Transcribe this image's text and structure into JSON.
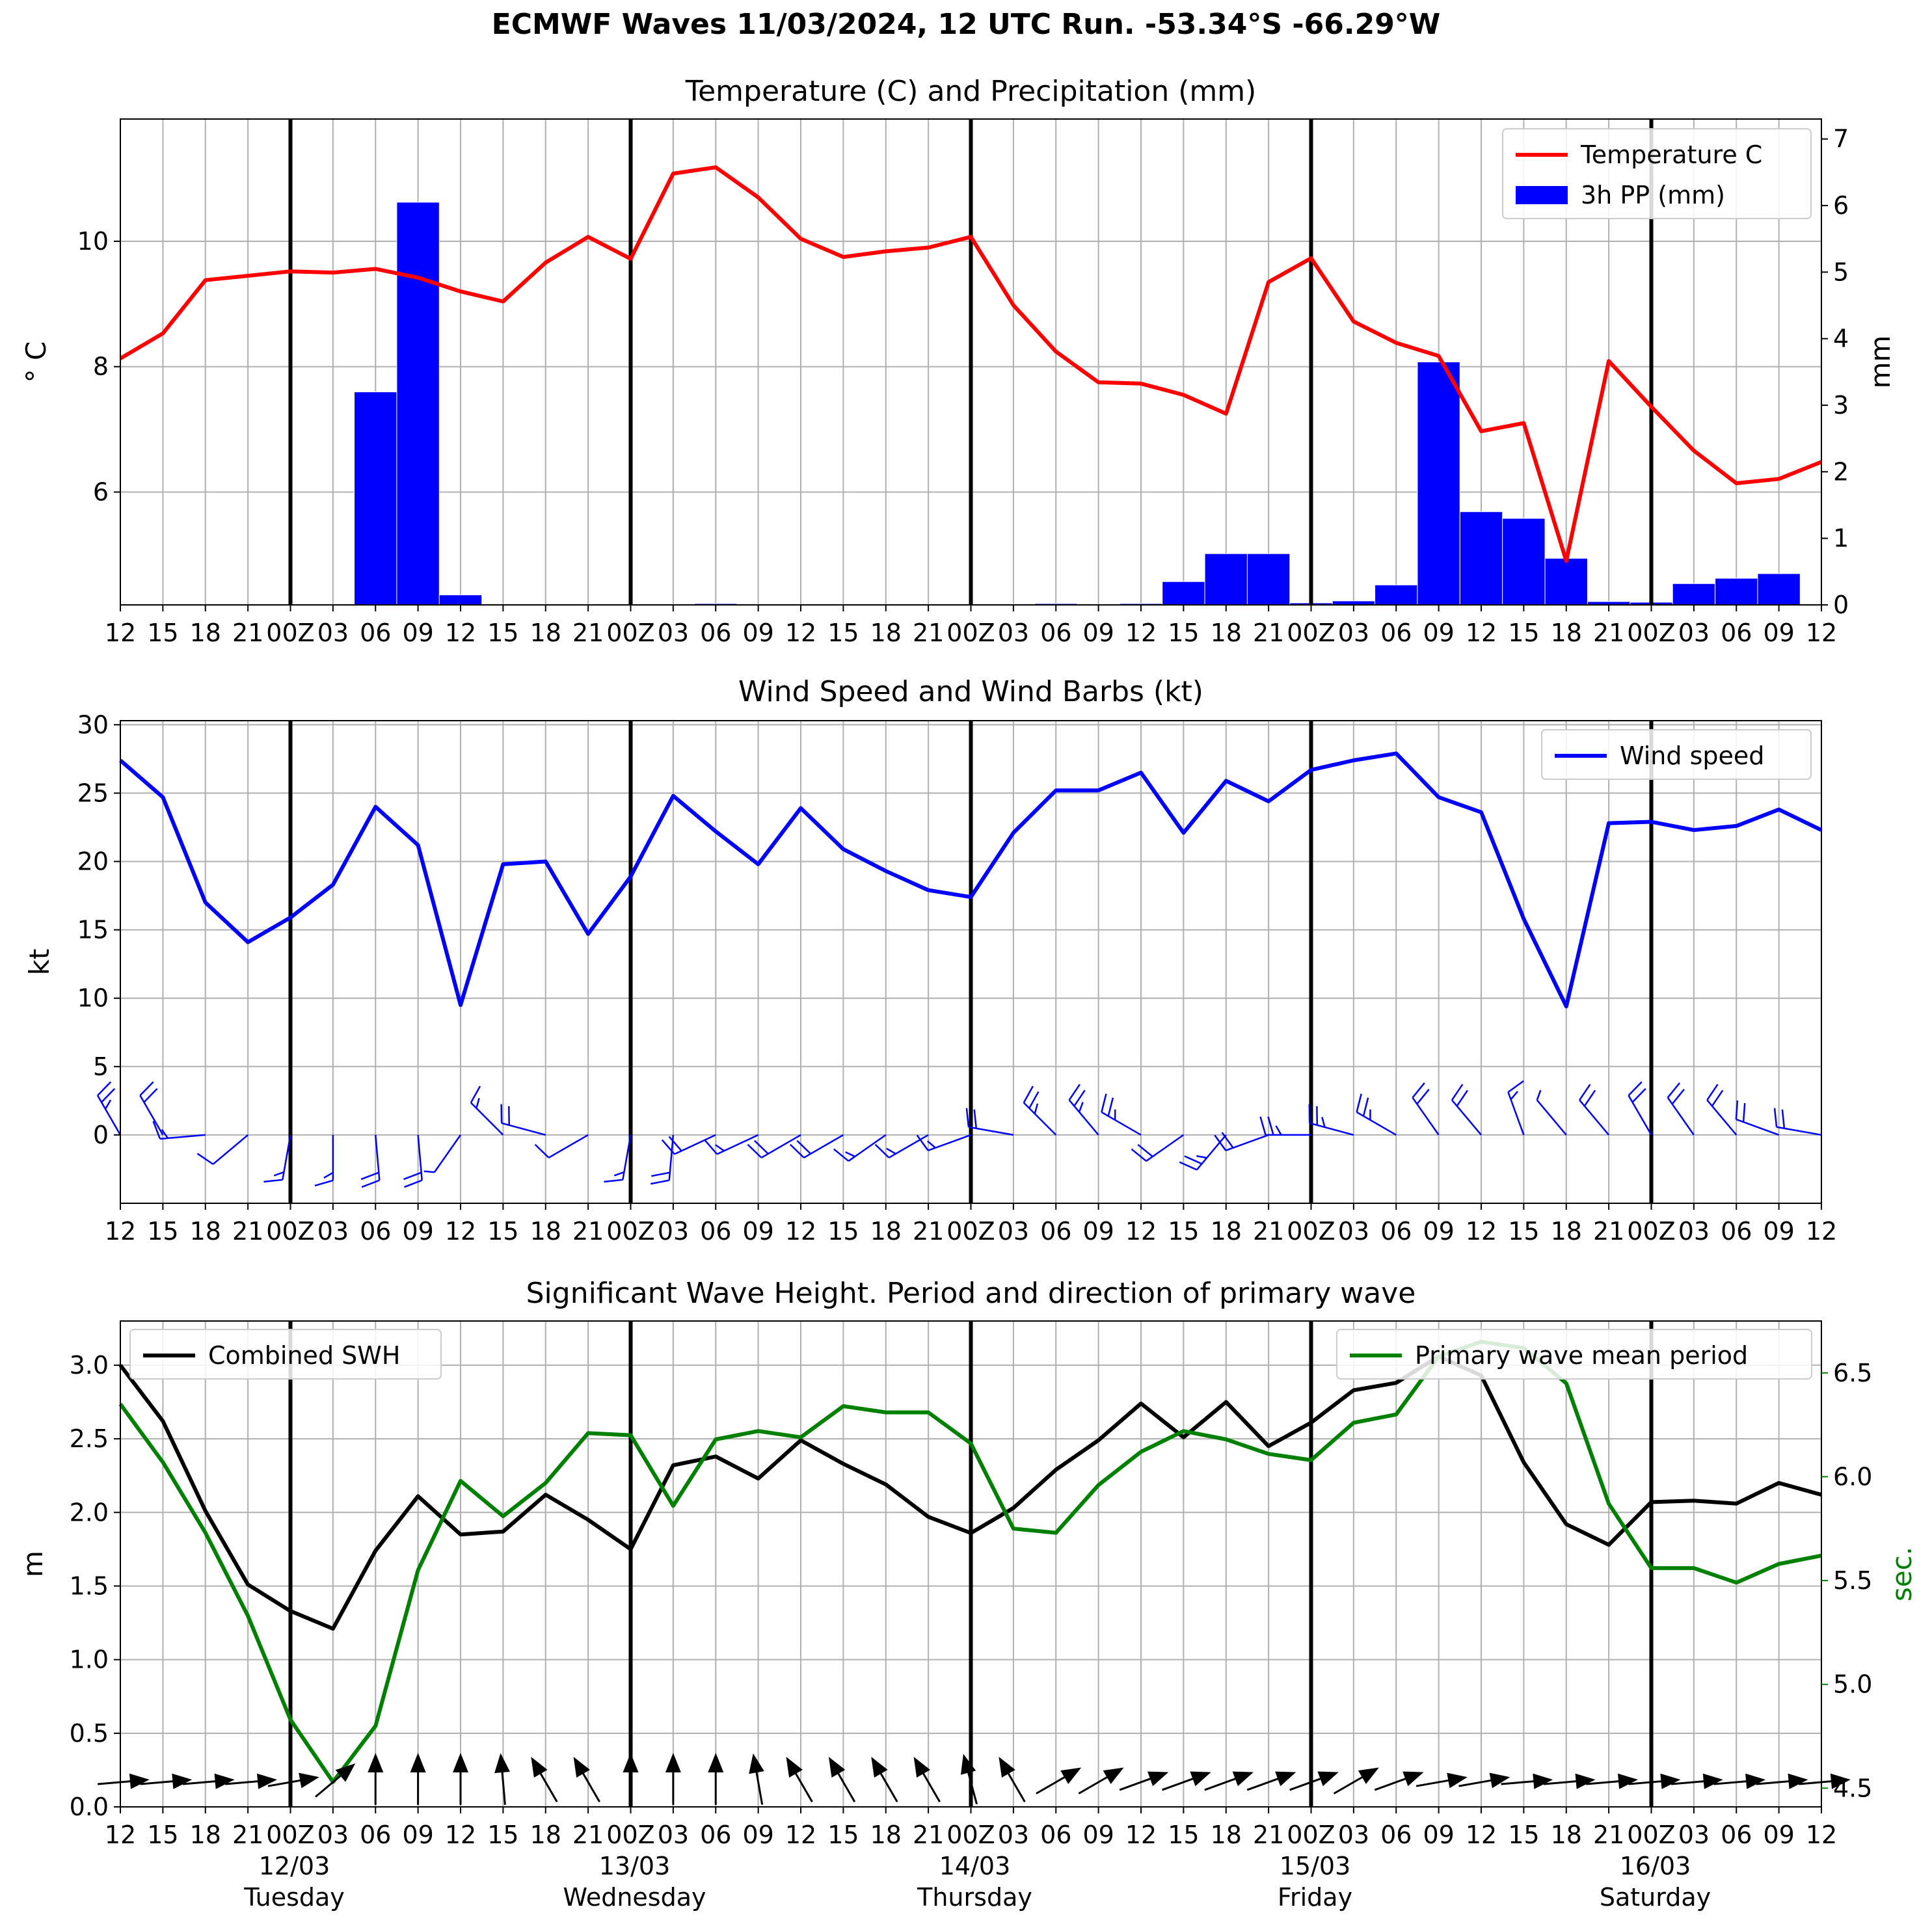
{
  "suptitle": "ECMWF Waves 11/03/2024, 12 UTC Run. -53.34°S -66.29°W",
  "x_tick_labels": [
    "12",
    "15",
    "18",
    "21",
    "00Z",
    "03",
    "06",
    "09",
    "12",
    "15",
    "18",
    "21",
    "00Z",
    "03",
    "06",
    "09",
    "12",
    "15",
    "18",
    "21",
    "00Z",
    "03",
    "06",
    "09",
    "12",
    "15",
    "18",
    "21",
    "00Z",
    "03",
    "06",
    "09",
    "12",
    "15",
    "18",
    "21",
    "00Z",
    "03",
    "06",
    "09",
    "12"
  ],
  "day_labels": [
    {
      "date": "12/03",
      "day": "Tuesday"
    },
    {
      "date": "13/03",
      "day": "Wednesday"
    },
    {
      "date": "14/03",
      "day": "Thursday"
    },
    {
      "date": "15/03",
      "day": "Friday"
    },
    {
      "date": "16/03",
      "day": "Saturday"
    }
  ],
  "colors": {
    "temperature": "#ff0000",
    "precip": "#0000ff",
    "wind": "#0000ff",
    "swh": "#000000",
    "period": "#008000",
    "daybar": "#000000"
  },
  "chart_data": [
    {
      "type": "line",
      "title": "Temperature (C) and Precipitation (mm)",
      "x_labels": [
        "11/03 12",
        "11/03 15",
        "11/03 18",
        "11/03 21",
        "12/03 00Z",
        "12/03 03",
        "12/03 06",
        "12/03 09",
        "12/03 12",
        "12/03 15",
        "12/03 18",
        "12/03 21",
        "13/03 00Z",
        "13/03 03",
        "13/03 06",
        "13/03 09",
        "13/03 12",
        "13/03 15",
        "13/03 18",
        "13/03 21",
        "14/03 00Z",
        "14/03 03",
        "14/03 06",
        "14/03 09",
        "14/03 12",
        "14/03 15",
        "14/03 18",
        "14/03 21",
        "15/03 00Z",
        "15/03 03",
        "15/03 06",
        "15/03 09",
        "15/03 12",
        "15/03 15",
        "15/03 18",
        "15/03 21",
        "16/03 00Z",
        "16/03 03",
        "16/03 06",
        "16/03 09",
        "16/03 12"
      ],
      "ylabel": "$^\\circ$C",
      "ylabel_display": "° C",
      "y2label": "mm",
      "ylim": [
        4.2,
        11.95
      ],
      "y2lim": [
        0,
        7.3
      ],
      "yticks": [
        6,
        8,
        10
      ],
      "y2ticks": [
        0,
        1,
        2,
        3,
        4,
        5,
        6,
        7
      ],
      "legend": {
        "position": "upper-right",
        "entries": [
          "Temperature C",
          "3h PP (mm)"
        ]
      },
      "grid": true,
      "series": [
        {
          "name": "Temperature C",
          "axis": "left",
          "values": [
            8.13,
            8.53,
            9.38,
            9.45,
            9.52,
            9.5,
            9.56,
            9.42,
            9.2,
            9.04,
            9.66,
            10.07,
            9.72,
            11.08,
            11.18,
            10.7,
            10.04,
            9.75,
            9.84,
            9.9,
            10.07,
            8.98,
            8.24,
            7.75,
            7.73,
            7.55,
            7.25,
            9.35,
            9.73,
            8.72,
            8.38,
            8.17,
            6.97,
            7.1,
            4.9,
            8.09,
            7.36,
            6.66,
            6.14,
            6.21,
            6.48
          ]
        },
        {
          "name": "3h PP (mm)",
          "axis": "right",
          "bar": true,
          "values": [
            0,
            0,
            0,
            0,
            0,
            0,
            3.2,
            6.05,
            0.15,
            0,
            0,
            0,
            0,
            0,
            0.02,
            0,
            0,
            0,
            0,
            0,
            0,
            0.01,
            0.02,
            0,
            0.02,
            0.35,
            0.77,
            0.77,
            0.03,
            0.06,
            0.3,
            3.65,
            1.4,
            1.3,
            0.7,
            0.05,
            0.04,
            0.32,
            0.4,
            0.47,
            0
          ]
        }
      ]
    },
    {
      "type": "line",
      "title": "Wind Speed and Wind Barbs (kt)",
      "ylabel": "kt",
      "ylim": [
        -5,
        30.3
      ],
      "yticks": [
        0,
        5,
        10,
        15,
        20,
        25,
        30
      ],
      "legend": {
        "position": "upper-right",
        "entries": [
          "Wind speed"
        ]
      },
      "grid": true,
      "series": [
        {
          "name": "Wind speed",
          "values": [
            27.4,
            24.7,
            17.0,
            14.1,
            15.9,
            18.3,
            24.0,
            21.2,
            9.5,
            19.8,
            20.0,
            14.7,
            18.9,
            24.8,
            22.2,
            19.8,
            23.9,
            20.9,
            19.3,
            17.9,
            17.4,
            22.1,
            25.2,
            25.2,
            26.5,
            22.1,
            25.9,
            24.4,
            26.7,
            27.4,
            27.9,
            24.7,
            23.6,
            15.8,
            9.4,
            22.8,
            22.9,
            22.3,
            22.6,
            23.8,
            22.3
          ]
        }
      ],
      "barbs": {
        "direction_from_deg": [
          330,
          330,
          265,
          230,
          190,
          180,
          175,
          175,
          215,
          315,
          285,
          240,
          190,
          185,
          245,
          245,
          240,
          240,
          235,
          240,
          250,
          280,
          315,
          320,
          300,
          235,
          220,
          250,
          270,
          285,
          300,
          325,
          320,
          340,
          320,
          320,
          330,
          325,
          320,
          290,
          280
        ]
      }
    },
    {
      "type": "line",
      "title": "Significant Wave Height. Period and direction of primary wave",
      "ylabel": "m",
      "y2label": "sec.",
      "ylim": [
        0,
        3.3
      ],
      "y2lim": [
        4.41,
        6.75
      ],
      "yticks": [
        0.0,
        0.5,
        1.0,
        1.5,
        2.0,
        2.5,
        3.0
      ],
      "y2ticks": [
        4.5,
        5.0,
        5.5,
        6.0,
        6.5
      ],
      "legend": [
        {
          "position": "upper-left",
          "entries": [
            "Combined SWH"
          ]
        },
        {
          "position": "upper-right",
          "entries": [
            "Primary wave mean period"
          ]
        }
      ],
      "grid": true,
      "series": [
        {
          "name": "Combined SWH",
          "axis": "left",
          "values": [
            3.0,
            2.62,
            2.01,
            1.51,
            1.33,
            1.21,
            1.74,
            2.11,
            1.85,
            1.87,
            2.12,
            1.95,
            1.75,
            2.32,
            2.38,
            2.23,
            2.49,
            2.33,
            2.19,
            1.97,
            1.86,
            2.03,
            2.29,
            2.49,
            2.74,
            2.51,
            2.75,
            2.45,
            2.61,
            2.83,
            2.88,
            3.06,
            2.93,
            2.34,
            1.92,
            1.78,
            2.07,
            2.08,
            2.06,
            2.2,
            2.12
          ]
        },
        {
          "name": "Primary wave mean period",
          "axis": "right",
          "values": [
            6.35,
            6.07,
            5.73,
            5.33,
            4.83,
            4.53,
            4.8,
            5.55,
            5.98,
            5.81,
            5.97,
            6.21,
            6.2,
            5.86,
            6.18,
            6.22,
            6.19,
            6.34,
            6.31,
            6.31,
            6.16,
            5.75,
            5.73,
            5.96,
            6.12,
            6.22,
            6.18,
            6.11,
            6.08,
            6.26,
            6.3,
            6.58,
            6.65,
            6.62,
            6.45,
            5.87,
            5.56,
            5.56,
            5.49,
            5.58,
            5.62
          ]
        }
      ],
      "arrows": {
        "direction_from_deg": [
          265,
          265,
          265,
          265,
          260,
          230,
          180,
          180,
          180,
          175,
          150,
          150,
          180,
          180,
          180,
          170,
          150,
          150,
          150,
          150,
          165,
          150,
          240,
          240,
          250,
          250,
          250,
          250,
          250,
          240,
          250,
          260,
          260,
          265,
          265,
          265,
          265,
          265,
          265,
          265,
          265
        ]
      }
    }
  ]
}
